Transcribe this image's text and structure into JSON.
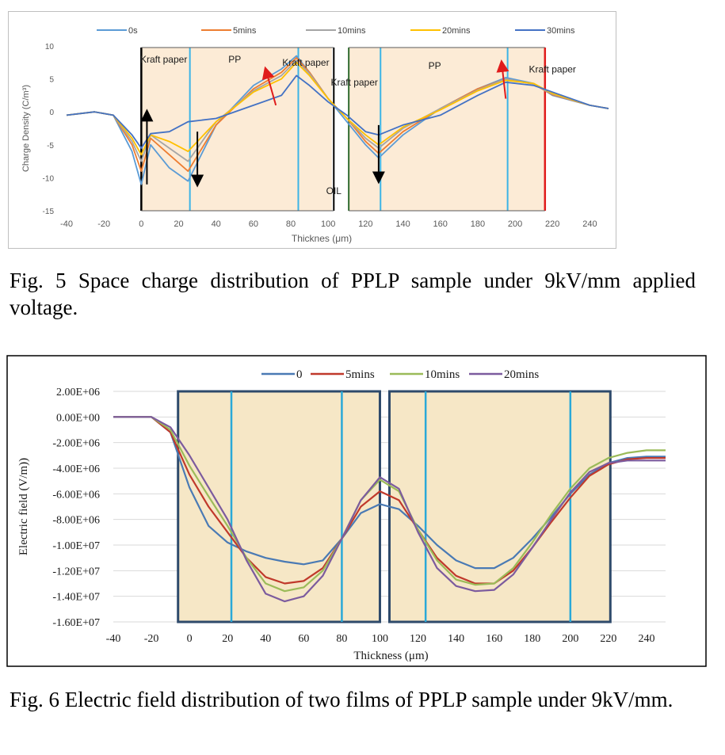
{
  "figures": [
    {
      "caption": "Fig. 5 Space charge distribution of PPLP sample under 9kV/mm applied voltage.",
      "chart_data": {
        "type": "line",
        "title": "",
        "xlabel": "Thicknes (μm)",
        "ylabel": "Charge Density (C/m³)",
        "xlim": [
          -40,
          250
        ],
        "ylim": [
          -15,
          10
        ],
        "xticks": [
          -40,
          -20,
          0,
          20,
          40,
          60,
          80,
          100,
          120,
          140,
          160,
          180,
          200,
          220,
          240
        ],
        "yticks": [
          10,
          5,
          0,
          -5,
          -10,
          -15
        ],
        "grid": false,
        "legend_position": "top",
        "x": [
          -40,
          -25,
          -15,
          -5,
          0,
          5,
          15,
          25,
          40,
          60,
          75,
          83,
          90,
          100,
          110,
          120,
          127,
          140,
          160,
          180,
          195,
          210,
          220,
          240,
          250
        ],
        "series": [
          {
            "name": "0s",
            "color": "#5b9bd5",
            "values": [
              -0.5,
              0.0,
              -0.5,
              -6.0,
              -11.0,
              -5.0,
              -8.5,
              -10.5,
              -2.0,
              4.0,
              6.5,
              8.5,
              6.0,
              2.0,
              -1.5,
              -5.0,
              -7.0,
              -3.5,
              0.5,
              3.5,
              5.2,
              4.3,
              2.5,
              1.0,
              0.5
            ]
          },
          {
            "name": "5mins",
            "color": "#ed7d31",
            "values": [
              -0.5,
              0.0,
              -0.5,
              -5.0,
              -9.0,
              -4.0,
              -6.5,
              -9.0,
              -2.0,
              3.5,
              6.0,
              8.2,
              6.0,
              2.0,
              -1.0,
              -4.5,
              -6.3,
              -3.0,
              0.5,
              3.5,
              5.0,
              4.2,
              2.6,
              1.0,
              0.5
            ]
          },
          {
            "name": "10mins",
            "color": "#a5a5a5",
            "values": [
              -0.5,
              0.0,
              -0.5,
              -4.5,
              -7.5,
              -3.5,
              -5.5,
              -7.5,
              -1.5,
              3.2,
              5.5,
              7.8,
              5.8,
              2.0,
              -1.0,
              -4.0,
              -5.5,
              -2.5,
              0.5,
              3.3,
              5.0,
              4.2,
              2.7,
              1.0,
              0.5
            ]
          },
          {
            "name": "20mins",
            "color": "#ffc000",
            "values": [
              -0.5,
              0.0,
              -0.5,
              -4.0,
              -6.5,
              -3.5,
              -4.5,
              -6.0,
              -1.5,
              3.0,
              5.0,
              7.5,
              5.5,
              2.0,
              -1.0,
              -3.5,
              -5.0,
              -2.3,
              0.3,
              3.2,
              4.8,
              4.3,
              2.8,
              1.0,
              0.5
            ]
          },
          {
            "name": "30mins",
            "color": "#4472c4",
            "values": [
              -0.5,
              0.0,
              -0.5,
              -3.5,
              -5.5,
              -3.3,
              -3.0,
              -1.5,
              -1.0,
              1.0,
              2.5,
              5.5,
              4.0,
              1.5,
              -0.5,
              -3.0,
              -3.5,
              -2.0,
              -0.5,
              2.5,
              4.5,
              4.0,
              3.0,
              1.0,
              0.5
            ]
          }
        ],
        "annotations": [
          {
            "text": "Kraft paper",
            "x": 12,
            "y": 7.5
          },
          {
            "text": "PP",
            "x": 50,
            "y": 7.5
          },
          {
            "text": "Kraft paper",
            "x": 88,
            "y": 7.0
          },
          {
            "text": "Kraft paper",
            "x": 114,
            "y": 4.0
          },
          {
            "text": "PP",
            "x": 157,
            "y": 6.5
          },
          {
            "text": "Kraft paper",
            "x": 220,
            "y": 6.0
          },
          {
            "text": "OIL",
            "x": 103,
            "y": -12.5
          }
        ]
      }
    },
    {
      "caption": "Fig. 6 Electric field distribution of two films of PPLP sample under 9kV/mm.",
      "chart_data": {
        "type": "line",
        "title": "",
        "xlabel": "Thickness (μm)",
        "ylabel": "Electric field (V/m))",
        "xlim": [
          -40,
          250
        ],
        "ylim": [
          -16000000,
          2000000
        ],
        "xticks": [
          -40,
          -20,
          0,
          20,
          40,
          60,
          80,
          100,
          120,
          140,
          160,
          180,
          200,
          220,
          240
        ],
        "yticks": [
          "2.00E+06",
          "0.00E+00",
          "-2.00E+06",
          "-4.00E+06",
          "-6.00E+06",
          "-8.00E+06",
          "-1.00E+07",
          "-1.20E+07",
          "-1.40E+07",
          "-1.60E+07"
        ],
        "grid": true,
        "legend_position": "top",
        "x": [
          -40,
          -25,
          -20,
          -10,
          0,
          10,
          20,
          30,
          40,
          50,
          60,
          70,
          80,
          90,
          100,
          110,
          120,
          130,
          140,
          150,
          160,
          170,
          180,
          190,
          200,
          210,
          220,
          230,
          240,
          250
        ],
        "series": [
          {
            "name": "0",
            "color": "#4a7ab4",
            "values": [
              0,
              0,
              0,
              -1200000,
              -5500000,
              -8500000,
              -9800000,
              -10500000,
              -11000000,
              -11300000,
              -11500000,
              -11200000,
              -9500000,
              -7500000,
              -6800000,
              -7200000,
              -8500000,
              -10000000,
              -11200000,
              -11800000,
              -11800000,
              -11000000,
              -9500000,
              -7800000,
              -6000000,
              -4500000,
              -3600000,
              -3200000,
              -3100000,
              -3100000
            ]
          },
          {
            "name": "5mins",
            "color": "#c0392b",
            "values": [
              0,
              0,
              0,
              -1200000,
              -4500000,
              -7000000,
              -9000000,
              -11000000,
              -12500000,
              -13000000,
              -12800000,
              -11800000,
              -9500000,
              -7000000,
              -5800000,
              -6500000,
              -8800000,
              -11000000,
              -12400000,
              -13000000,
              -13000000,
              -12000000,
              -10200000,
              -8200000,
              -6300000,
              -4600000,
              -3700000,
              -3300000,
              -3200000,
              -3200000
            ]
          },
          {
            "name": "10mins",
            "color": "#9bbb59",
            "values": [
              0,
              0,
              0,
              -1000000,
              -3800000,
              -6200000,
              -8500000,
              -11000000,
              -13000000,
              -13600000,
              -13300000,
              -12000000,
              -9500000,
              -6500000,
              -4900000,
              -5800000,
              -8800000,
              -11200000,
              -12700000,
              -13100000,
              -13000000,
              -11800000,
              -9800000,
              -7600000,
              -5600000,
              -4000000,
              -3200000,
              -2800000,
              -2600000,
              -2600000
            ]
          },
          {
            "name": "20mins",
            "color": "#7c5b9e",
            "values": [
              0,
              0,
              0,
              -800000,
              -3000000,
              -5500000,
              -8000000,
              -11200000,
              -13800000,
              -14400000,
              -14000000,
              -12400000,
              -9500000,
              -6500000,
              -4700000,
              -5600000,
              -9000000,
              -11800000,
              -13200000,
              -13600000,
              -13500000,
              -12300000,
              -10200000,
              -8000000,
              -5900000,
              -4300000,
              -3600000,
              -3400000,
              -3400000,
              -3400000
            ]
          }
        ]
      }
    }
  ]
}
